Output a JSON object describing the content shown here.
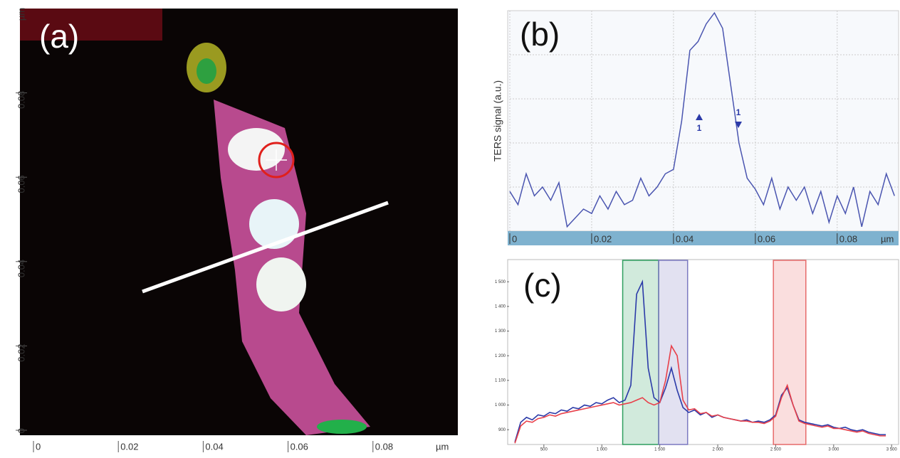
{
  "chart_data": [
    {
      "type": "image",
      "panel_label": "(a)",
      "x_unit": "µm",
      "y_unit": "µm",
      "xlim": [
        0,
        0.1
      ],
      "ylim": [
        0,
        0.1
      ],
      "xticks": [
        0,
        0.02,
        0.04,
        0.06,
        0.08
      ],
      "yticks": [
        0,
        0.02,
        0.04,
        0.06,
        0.08
      ]
    },
    {
      "type": "line",
      "panel_label": "(b)",
      "y_label": "TERS signal (a.u.)",
      "x_unit": "µm",
      "xlim": [
        0,
        0.095
      ],
      "ylim": [
        0,
        5
      ],
      "xticks": [
        0,
        0.02,
        0.04,
        0.06,
        0.08
      ],
      "grid": true,
      "annotations": [
        "1",
        "1"
      ],
      "series": [
        {
          "color": "#4a55b0",
          "x": [
            0,
            0.002,
            0.004,
            0.006,
            0.008,
            0.01,
            0.012,
            0.014,
            0.016,
            0.018,
            0.02,
            0.022,
            0.024,
            0.026,
            0.028,
            0.03,
            0.032,
            0.034,
            0.036,
            0.038,
            0.04,
            0.042,
            0.044,
            0.046,
            0.048,
            0.05,
            0.052,
            0.054,
            0.056,
            0.058,
            0.06,
            0.062,
            0.064,
            0.066,
            0.068,
            0.07,
            0.072,
            0.074,
            0.076,
            0.078,
            0.08,
            0.082,
            0.084,
            0.086,
            0.088,
            0.09,
            0.092,
            0.094
          ],
          "values": [
            0.9,
            0.6,
            1.3,
            0.8,
            1.0,
            0.7,
            1.1,
            0.1,
            0.3,
            0.5,
            0.4,
            0.8,
            0.5,
            0.9,
            0.6,
            0.7,
            1.2,
            0.8,
            1.0,
            1.3,
            1.4,
            2.5,
            4.1,
            4.3,
            4.7,
            4.95,
            4.6,
            3.3,
            2.0,
            1.2,
            0.95,
            0.6,
            1.2,
            0.5,
            1.0,
            0.7,
            1.0,
            0.4,
            0.9,
            0.2,
            0.8,
            0.4,
            1.0,
            0.1,
            0.9,
            0.6,
            1.3,
            0.8
          ]
        }
      ]
    },
    {
      "type": "line",
      "panel_label": "(c)",
      "xlim": [
        200,
        3560
      ],
      "ylim": [
        840,
        1590
      ],
      "xticks": [
        {
          "value": 500,
          "label": "500"
        },
        {
          "value": 1000,
          "label": "1 000"
        },
        {
          "value": 1500,
          "label": "1 500"
        },
        {
          "value": 2000,
          "label": "2 000"
        },
        {
          "value": 2500,
          "label": "2 500"
        },
        {
          "value": 3000,
          "label": "3 000"
        },
        {
          "value": 3500,
          "label": "3 500"
        }
      ],
      "yticks": [
        {
          "value": 900,
          "label": "900"
        },
        {
          "value": 1000,
          "label": "1 000"
        },
        {
          "value": 1100,
          "label": "1 100"
        },
        {
          "value": 1200,
          "label": "1 200"
        },
        {
          "value": 1300,
          "label": "1 300"
        },
        {
          "value": 1400,
          "label": "1 400"
        },
        {
          "value": 1500,
          "label": "1 500"
        }
      ],
      "bands": [
        {
          "from": 1180,
          "to": 1490,
          "color": "#2e9e5e"
        },
        {
          "from": 1490,
          "to": 1740,
          "color": "#7a78c0"
        },
        {
          "from": 2480,
          "to": 2760,
          "color": "#e66a6a"
        }
      ],
      "series": [
        {
          "color": "#2b3aa8",
          "x": [
            250,
            300,
            350,
            400,
            450,
            500,
            550,
            600,
            650,
            700,
            750,
            800,
            850,
            900,
            950,
            1000,
            1050,
            1100,
            1150,
            1200,
            1250,
            1300,
            1350,
            1400,
            1450,
            1500,
            1550,
            1600,
            1650,
            1700,
            1750,
            1800,
            1850,
            1900,
            1950,
            2000,
            2050,
            2100,
            2150,
            2200,
            2250,
            2300,
            2350,
            2400,
            2450,
            2500,
            2550,
            2600,
            2650,
            2700,
            2750,
            2800,
            2850,
            2900,
            2950,
            3000,
            3050,
            3100,
            3150,
            3200,
            3250,
            3300,
            3350,
            3400,
            3450
          ],
          "values": [
            850,
            930,
            950,
            940,
            960,
            955,
            970,
            965,
            980,
            975,
            990,
            985,
            1000,
            995,
            1010,
            1005,
            1020,
            1030,
            1010,
            1020,
            1080,
            1450,
            1500,
            1150,
            1030,
            1010,
            1070,
            1150,
            1060,
            990,
            970,
            980,
            960,
            970,
            950,
            960,
            950,
            945,
            940,
            935,
            940,
            930,
            935,
            930,
            940,
            960,
            1040,
            1070,
            1000,
            940,
            930,
            925,
            920,
            915,
            920,
            910,
            905,
            910,
            900,
            895,
            900,
            890,
            885,
            880,
            880
          ]
        },
        {
          "color": "#e8404a",
          "x": [
            250,
            300,
            350,
            400,
            450,
            500,
            550,
            600,
            650,
            700,
            750,
            800,
            850,
            900,
            950,
            1000,
            1050,
            1100,
            1150,
            1200,
            1250,
            1300,
            1350,
            1400,
            1450,
            1500,
            1550,
            1600,
            1650,
            1700,
            1750,
            1800,
            1850,
            1900,
            1950,
            2000,
            2050,
            2100,
            2150,
            2200,
            2250,
            2300,
            2350,
            2400,
            2450,
            2500,
            2550,
            2600,
            2650,
            2700,
            2750,
            2800,
            2850,
            2900,
            2950,
            3000,
            3050,
            3100,
            3150,
            3200,
            3250,
            3300,
            3350,
            3400,
            3450
          ],
          "values": [
            845,
            915,
            935,
            930,
            945,
            950,
            960,
            955,
            965,
            970,
            975,
            980,
            985,
            990,
            995,
            1000,
            1005,
            1010,
            1000,
            1005,
            1010,
            1020,
            1030,
            1010,
            1000,
            1010,
            1100,
            1240,
            1200,
            1020,
            980,
            985,
            965,
            970,
            955,
            960,
            950,
            945,
            940,
            935,
            935,
            930,
            930,
            925,
            935,
            955,
            1030,
            1080,
            1000,
            935,
            925,
            920,
            915,
            910,
            915,
            905,
            905,
            900,
            895,
            890,
            895,
            885,
            880,
            875,
            875
          ]
        }
      ]
    }
  ]
}
